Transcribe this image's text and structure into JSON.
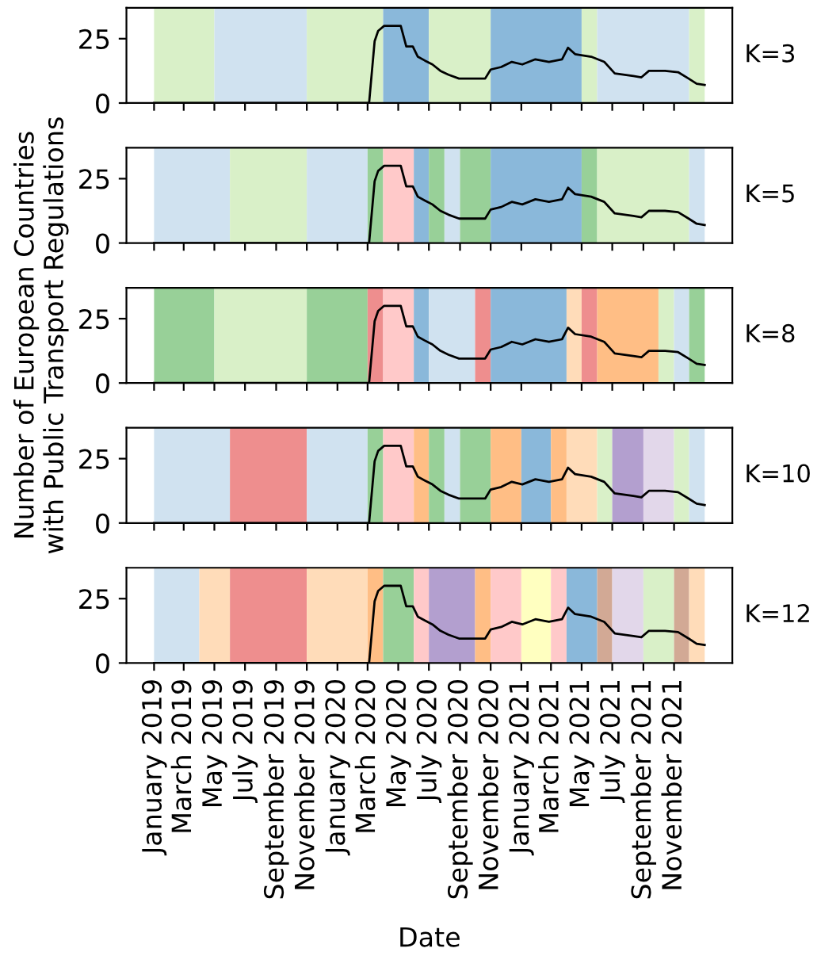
{
  "chart_data": [
    {
      "type": "line",
      "xlim": [
        "2018-11-07",
        "2022-02-25"
      ],
      "ylim": [
        0,
        37
      ],
      "yticks": [
        0,
        25
      ],
      "tick_labels": "y",
      "grid": false,
      "legend": false,
      "annotations": [
        "K=3"
      ],
      "x": [
        "2019-01-01",
        "2020-03-04",
        "2020-03-15",
        "2020-03-22",
        "2020-04-03",
        "2020-05-06",
        "2020-05-17",
        "2020-05-30",
        "2020-06-09",
        "2020-06-23",
        "2020-07-08",
        "2020-07-24",
        "2020-08-09",
        "2020-08-30",
        "2020-10-21",
        "2020-11-01",
        "2020-11-22",
        "2020-12-13",
        "2021-01-03",
        "2021-01-29",
        "2021-02-25",
        "2021-03-23",
        "2021-04-04",
        "2021-04-18",
        "2021-05-20",
        "2021-06-15",
        "2021-07-06",
        "2021-08-12",
        "2021-08-28",
        "2021-09-12",
        "2021-10-14",
        "2021-11-09",
        "2021-11-30",
        "2021-12-16",
        "2022-01-01"
      ],
      "series": [
        {
          "color": "#000000",
          "values": [
            0,
            0,
            24,
            28,
            30,
            30,
            22,
            22,
            18,
            16.5,
            15,
            12.5,
            11,
            9.5,
            9.5,
            13,
            14,
            16,
            15,
            17,
            16,
            17,
            21.5,
            19,
            18,
            16,
            11.5,
            10.5,
            10,
            12.5,
            12.5,
            12,
            9.5,
            7.5,
            7
          ]
        }
      ],
      "bands": [
        {
          "axis": "x",
          "from": "2019-01",
          "to": "2019-05",
          "color": "#d9f0c8"
        },
        {
          "axis": "x",
          "from": "2019-05",
          "to": "2019-11",
          "color": "#d0e2f0"
        },
        {
          "axis": "x",
          "from": "2019-11",
          "to": "2020-04",
          "color": "#d9f0c8"
        },
        {
          "axis": "x",
          "from": "2020-04",
          "to": "2020-07",
          "color": "#8ab8da"
        },
        {
          "axis": "x",
          "from": "2020-07",
          "to": "2020-11",
          "color": "#d9f0c8"
        },
        {
          "axis": "x",
          "from": "2020-11",
          "to": "2021-05",
          "color": "#8ab8da"
        },
        {
          "axis": "x",
          "from": "2021-05",
          "to": "2021-06",
          "color": "#d9f0c8"
        },
        {
          "axis": "x",
          "from": "2021-06",
          "to": "2021-12",
          "color": "#d0e2f0"
        },
        {
          "axis": "x",
          "from": "2021-12",
          "to": "2022-01",
          "color": "#d9f0c8"
        }
      ]
    },
    {
      "type": "line",
      "xlim": [
        "2018-11-07",
        "2022-02-25"
      ],
      "ylim": [
        0,
        37
      ],
      "yticks": [
        0,
        25
      ],
      "tick_labels": "y",
      "grid": false,
      "legend": false,
      "annotations": [
        "K=5"
      ],
      "x": [
        "2019-01-01",
        "2020-03-04",
        "2020-03-15",
        "2020-03-22",
        "2020-04-03",
        "2020-05-06",
        "2020-05-17",
        "2020-05-30",
        "2020-06-09",
        "2020-06-23",
        "2020-07-08",
        "2020-07-24",
        "2020-08-09",
        "2020-08-30",
        "2020-10-21",
        "2020-11-01",
        "2020-11-22",
        "2020-12-13",
        "2021-01-03",
        "2021-01-29",
        "2021-02-25",
        "2021-03-23",
        "2021-04-04",
        "2021-04-18",
        "2021-05-20",
        "2021-06-15",
        "2021-07-06",
        "2021-08-12",
        "2021-08-28",
        "2021-09-12",
        "2021-10-14",
        "2021-11-09",
        "2021-11-30",
        "2021-12-16",
        "2022-01-01"
      ],
      "series": [
        {
          "color": "#000000",
          "values": [
            0,
            0,
            24,
            28,
            30,
            30,
            22,
            22,
            18,
            16.5,
            15,
            12.5,
            11,
            9.5,
            9.5,
            13,
            14,
            16,
            15,
            17,
            16,
            17,
            21.5,
            19,
            18,
            16,
            11.5,
            10.5,
            10,
            12.5,
            12.5,
            12,
            9.5,
            7.5,
            7
          ]
        }
      ],
      "bands": [
        {
          "axis": "x",
          "from": "2019-01",
          "to": "2019-06",
          "color": "#d0e2f0"
        },
        {
          "axis": "x",
          "from": "2019-06",
          "to": "2019-11",
          "color": "#d9f0c8"
        },
        {
          "axis": "x",
          "from": "2019-11",
          "to": "2020-03",
          "color": "#d0e2f0"
        },
        {
          "axis": "x",
          "from": "2020-03",
          "to": "2020-04",
          "color": "#98d098"
        },
        {
          "axis": "x",
          "from": "2020-04",
          "to": "2020-06",
          "color": "#ffc9c9"
        },
        {
          "axis": "x",
          "from": "2020-06",
          "to": "2020-07",
          "color": "#8ab8da"
        },
        {
          "axis": "x",
          "from": "2020-07",
          "to": "2020-08",
          "color": "#98d098"
        },
        {
          "axis": "x",
          "from": "2020-08",
          "to": "2020-09",
          "color": "#d0e2f0"
        },
        {
          "axis": "x",
          "from": "2020-09",
          "to": "2020-11",
          "color": "#98d098"
        },
        {
          "axis": "x",
          "from": "2020-11",
          "to": "2021-05",
          "color": "#8ab8da"
        },
        {
          "axis": "x",
          "from": "2021-05",
          "to": "2021-06",
          "color": "#98d098"
        },
        {
          "axis": "x",
          "from": "2021-06",
          "to": "2021-12",
          "color": "#d9f0c8"
        },
        {
          "axis": "x",
          "from": "2021-12",
          "to": "2022-01",
          "color": "#d0e2f0"
        }
      ]
    },
    {
      "type": "line",
      "xlim": [
        "2018-11-07",
        "2022-02-25"
      ],
      "ylim": [
        0,
        37
      ],
      "yticks": [
        0,
        25
      ],
      "tick_labels": "y",
      "grid": false,
      "legend": false,
      "annotations": [
        "K=8"
      ],
      "ylabel": "Number of European Countries\nwith Public Transport Regulations",
      "x": [
        "2019-01-01",
        "2020-03-04",
        "2020-03-15",
        "2020-03-22",
        "2020-04-03",
        "2020-05-06",
        "2020-05-17",
        "2020-05-30",
        "2020-06-09",
        "2020-06-23",
        "2020-07-08",
        "2020-07-24",
        "2020-08-09",
        "2020-08-30",
        "2020-10-21",
        "2020-11-01",
        "2020-11-22",
        "2020-12-13",
        "2021-01-03",
        "2021-01-29",
        "2021-02-25",
        "2021-03-23",
        "2021-04-04",
        "2021-04-18",
        "2021-05-20",
        "2021-06-15",
        "2021-07-06",
        "2021-08-12",
        "2021-08-28",
        "2021-09-12",
        "2021-10-14",
        "2021-11-09",
        "2021-11-30",
        "2021-12-16",
        "2022-01-01"
      ],
      "series": [
        {
          "color": "#000000",
          "values": [
            0,
            0,
            24,
            28,
            30,
            30,
            22,
            22,
            18,
            16.5,
            15,
            12.5,
            11,
            9.5,
            9.5,
            13,
            14,
            16,
            15,
            17,
            16,
            17,
            21.5,
            19,
            18,
            16,
            11.5,
            10.5,
            10,
            12.5,
            12.5,
            12,
            9.5,
            7.5,
            7
          ]
        }
      ],
      "bands": [
        {
          "axis": "x",
          "from": "2019-01",
          "to": "2019-05",
          "color": "#98d098"
        },
        {
          "axis": "x",
          "from": "2019-05",
          "to": "2019-11",
          "color": "#d9f0c8"
        },
        {
          "axis": "x",
          "from": "2019-11",
          "to": "2020-03",
          "color": "#98d098"
        },
        {
          "axis": "x",
          "from": "2020-03",
          "to": "2020-04",
          "color": "#ee8e8e"
        },
        {
          "axis": "x",
          "from": "2020-04",
          "to": "2020-06",
          "color": "#ffc9c9"
        },
        {
          "axis": "x",
          "from": "2020-06",
          "to": "2020-07",
          "color": "#8ab8da"
        },
        {
          "axis": "x",
          "from": "2020-07",
          "to": "2020-10",
          "color": "#d0e2f0"
        },
        {
          "axis": "x",
          "from": "2020-10",
          "to": "2020-11",
          "color": "#ee8e8e"
        },
        {
          "axis": "x",
          "from": "2020-11",
          "to": "2021-04",
          "color": "#8ab8da"
        },
        {
          "axis": "x",
          "from": "2021-04",
          "to": "2021-05",
          "color": "#ffdcb9"
        },
        {
          "axis": "x",
          "from": "2021-05",
          "to": "2021-06",
          "color": "#ee8e8e"
        },
        {
          "axis": "x",
          "from": "2021-06",
          "to": "2021-10",
          "color": "#ffbe85"
        },
        {
          "axis": "x",
          "from": "2021-10",
          "to": "2021-11",
          "color": "#d9f0c8"
        },
        {
          "axis": "x",
          "from": "2021-11",
          "to": "2021-12",
          "color": "#d0e2f0"
        },
        {
          "axis": "x",
          "from": "2021-12",
          "to": "2022-01",
          "color": "#98d098"
        }
      ]
    },
    {
      "type": "line",
      "xlim": [
        "2018-11-07",
        "2022-02-25"
      ],
      "ylim": [
        0,
        37
      ],
      "yticks": [
        0,
        25
      ],
      "tick_labels": "y",
      "grid": false,
      "legend": false,
      "annotations": [
        "K=10"
      ],
      "x": [
        "2019-01-01",
        "2020-03-04",
        "2020-03-15",
        "2020-03-22",
        "2020-04-03",
        "2020-05-06",
        "2020-05-17",
        "2020-05-30",
        "2020-06-09",
        "2020-06-23",
        "2020-07-08",
        "2020-07-24",
        "2020-08-09",
        "2020-08-30",
        "2020-10-21",
        "2020-11-01",
        "2020-11-22",
        "2020-12-13",
        "2021-01-03",
        "2021-01-29",
        "2021-02-25",
        "2021-03-23",
        "2021-04-04",
        "2021-04-18",
        "2021-05-20",
        "2021-06-15",
        "2021-07-06",
        "2021-08-12",
        "2021-08-28",
        "2021-09-12",
        "2021-10-14",
        "2021-11-09",
        "2021-11-30",
        "2021-12-16",
        "2022-01-01"
      ],
      "series": [
        {
          "color": "#000000",
          "values": [
            0,
            0,
            24,
            28,
            30,
            30,
            22,
            22,
            18,
            16.5,
            15,
            12.5,
            11,
            9.5,
            9.5,
            13,
            14,
            16,
            15,
            17,
            16,
            17,
            21.5,
            19,
            18,
            16,
            11.5,
            10.5,
            10,
            12.5,
            12.5,
            12,
            9.5,
            7.5,
            7
          ]
        }
      ],
      "bands": [
        {
          "axis": "x",
          "from": "2019-01",
          "to": "2019-06",
          "color": "#d0e2f0"
        },
        {
          "axis": "x",
          "from": "2019-06",
          "to": "2019-11",
          "color": "#ee8e8e"
        },
        {
          "axis": "x",
          "from": "2019-11",
          "to": "2020-03",
          "color": "#d0e2f0"
        },
        {
          "axis": "x",
          "from": "2020-03",
          "to": "2020-04",
          "color": "#98d098"
        },
        {
          "axis": "x",
          "from": "2020-04",
          "to": "2020-06",
          "color": "#ffc9c9"
        },
        {
          "axis": "x",
          "from": "2020-06",
          "to": "2020-07",
          "color": "#ffbe85"
        },
        {
          "axis": "x",
          "from": "2020-07",
          "to": "2020-08",
          "color": "#98d098"
        },
        {
          "axis": "x",
          "from": "2020-08",
          "to": "2020-09",
          "color": "#d0e2f0"
        },
        {
          "axis": "x",
          "from": "2020-09",
          "to": "2020-11",
          "color": "#98d098"
        },
        {
          "axis": "x",
          "from": "2020-11",
          "to": "2021-01",
          "color": "#ffbe85"
        },
        {
          "axis": "x",
          "from": "2021-01",
          "to": "2021-03",
          "color": "#8ab8da"
        },
        {
          "axis": "x",
          "from": "2021-03",
          "to": "2021-04",
          "color": "#ffbe85"
        },
        {
          "axis": "x",
          "from": "2021-04",
          "to": "2021-06",
          "color": "#ffdcb9"
        },
        {
          "axis": "x",
          "from": "2021-06",
          "to": "2021-07",
          "color": "#d9f0c8"
        },
        {
          "axis": "x",
          "from": "2021-07",
          "to": "2021-09",
          "color": "#b39fcf"
        },
        {
          "axis": "x",
          "from": "2021-09",
          "to": "2021-11",
          "color": "#e2d7ea"
        },
        {
          "axis": "x",
          "from": "2021-11",
          "to": "2021-12",
          "color": "#d9f0c8"
        },
        {
          "axis": "x",
          "from": "2021-12",
          "to": "2022-01",
          "color": "#d0e2f0"
        }
      ]
    },
    {
      "type": "line",
      "xlim": [
        "2018-11-07",
        "2022-02-25"
      ],
      "ylim": [
        0,
        37
      ],
      "yticks": [
        0,
        25
      ],
      "grid": false,
      "legend": false,
      "annotations": [
        "K=12"
      ],
      "xlabel": "Date",
      "xticks": [
        {
          "value": "2019-01",
          "label": "January 2019"
        },
        {
          "value": "2019-03",
          "label": "March 2019"
        },
        {
          "value": "2019-05",
          "label": "May 2019"
        },
        {
          "value": "2019-07",
          "label": "July 2019"
        },
        {
          "value": "2019-09",
          "label": "September 2019"
        },
        {
          "value": "2019-11",
          "label": "November 2019"
        },
        {
          "value": "2020-01",
          "label": "January 2020"
        },
        {
          "value": "2020-03",
          "label": "March 2020"
        },
        {
          "value": "2020-05",
          "label": "May 2020"
        },
        {
          "value": "2020-07",
          "label": "July 2020"
        },
        {
          "value": "2020-09",
          "label": "September 2020"
        },
        {
          "value": "2020-11",
          "label": "November 2020"
        },
        {
          "value": "2021-01",
          "label": "January 2021"
        },
        {
          "value": "2021-03",
          "label": "March 2021"
        },
        {
          "value": "2021-05",
          "label": "May 2021"
        },
        {
          "value": "2021-07",
          "label": "July 2021"
        },
        {
          "value": "2021-09",
          "label": "September 2021"
        },
        {
          "value": "2021-11",
          "label": "November 2021"
        }
      ],
      "x": [
        "2019-01-01",
        "2020-03-04",
        "2020-03-15",
        "2020-03-22",
        "2020-04-03",
        "2020-05-06",
        "2020-05-17",
        "2020-05-30",
        "2020-06-09",
        "2020-06-23",
        "2020-07-08",
        "2020-07-24",
        "2020-08-09",
        "2020-08-30",
        "2020-10-21",
        "2020-11-01",
        "2020-11-22",
        "2020-12-13",
        "2021-01-03",
        "2021-01-29",
        "2021-02-25",
        "2021-03-23",
        "2021-04-04",
        "2021-04-18",
        "2021-05-20",
        "2021-06-15",
        "2021-07-06",
        "2021-08-12",
        "2021-08-28",
        "2021-09-12",
        "2021-10-14",
        "2021-11-09",
        "2021-11-30",
        "2021-12-16",
        "2022-01-01"
      ],
      "series": [
        {
          "color": "#000000",
          "values": [
            0,
            0,
            24,
            28,
            30,
            30,
            22,
            22,
            18,
            16.5,
            15,
            12.5,
            11,
            9.5,
            9.5,
            13,
            14,
            16,
            15,
            17,
            16,
            17,
            21.5,
            19,
            18,
            16,
            11.5,
            10.5,
            10,
            12.5,
            12.5,
            12,
            9.5,
            7.5,
            7
          ]
        }
      ],
      "bands": [
        {
          "axis": "x",
          "from": "2019-01",
          "to": "2019-04",
          "color": "#d0e2f0"
        },
        {
          "axis": "x",
          "from": "2019-04",
          "to": "2019-06",
          "color": "#ffdcb9"
        },
        {
          "axis": "x",
          "from": "2019-06",
          "to": "2019-11",
          "color": "#ee8e8e"
        },
        {
          "axis": "x",
          "from": "2019-11",
          "to": "2020-03",
          "color": "#ffdcb9"
        },
        {
          "axis": "x",
          "from": "2020-03",
          "to": "2020-04",
          "color": "#ffbe85"
        },
        {
          "axis": "x",
          "from": "2020-04",
          "to": "2020-06",
          "color": "#98d098"
        },
        {
          "axis": "x",
          "from": "2020-06",
          "to": "2020-07",
          "color": "#ffc9c9"
        },
        {
          "axis": "x",
          "from": "2020-07",
          "to": "2020-10",
          "color": "#b39fcf"
        },
        {
          "axis": "x",
          "from": "2020-10",
          "to": "2020-11",
          "color": "#ffbe85"
        },
        {
          "axis": "x",
          "from": "2020-11",
          "to": "2021-01",
          "color": "#ffc9c9"
        },
        {
          "axis": "x",
          "from": "2021-01",
          "to": "2021-03",
          "color": "#ffffc0"
        },
        {
          "axis": "x",
          "from": "2021-03",
          "to": "2021-04",
          "color": "#ffc9c9"
        },
        {
          "axis": "x",
          "from": "2021-04",
          "to": "2021-06",
          "color": "#8ab8da"
        },
        {
          "axis": "x",
          "from": "2021-06",
          "to": "2021-07",
          "color": "#d2a995"
        },
        {
          "axis": "x",
          "from": "2021-07",
          "to": "2021-09",
          "color": "#e2d7ea"
        },
        {
          "axis": "x",
          "from": "2021-09",
          "to": "2021-11",
          "color": "#d9f0c8"
        },
        {
          "axis": "x",
          "from": "2021-11",
          "to": "2021-12",
          "color": "#d2a995"
        },
        {
          "axis": "x",
          "from": "2021-12",
          "to": "2022-01",
          "color": "#ffdcb9"
        }
      ]
    }
  ]
}
